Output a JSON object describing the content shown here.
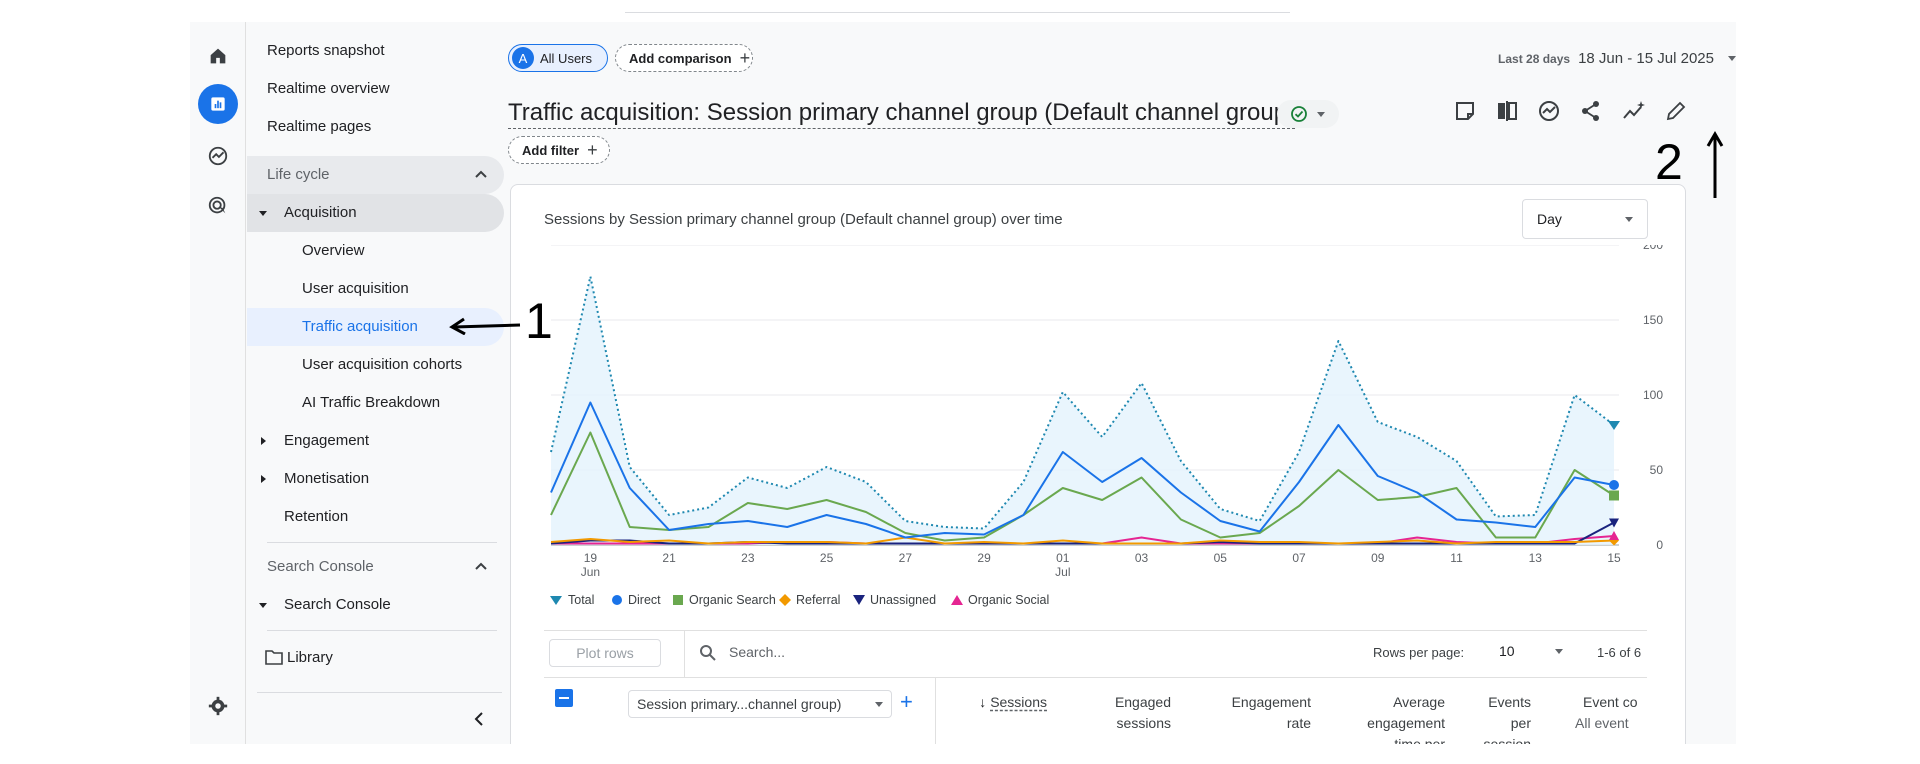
{
  "nav": {
    "top_items": [
      "Reports snapshot",
      "Realtime overview",
      "Realtime pages"
    ],
    "lifecycle_label": "Life cycle",
    "acquisition_label": "Acquisition",
    "acquisition_children": [
      "Overview",
      "User acquisition",
      "Traffic acquisition",
      "User acquisition cohorts",
      "AI Traffic Breakdown"
    ],
    "engagement_label": "Engagement",
    "monetisation_label": "Monetisation",
    "retention_label": "Retention",
    "search_console_head": "Search Console",
    "search_console_item": "Search Console",
    "library_label": "Library"
  },
  "header": {
    "segment_letter": "A",
    "segment_label": "All Users",
    "add_comparison": "Add comparison",
    "date_prefix": "Last 28 days",
    "date_range": "18 Jun - 15 Jul 2025",
    "title": "Traffic acquisition: Session primary channel group (Default channel group)",
    "add_filter": "Add filter"
  },
  "card": {
    "chart_title": "Sessions by Session primary channel group (Default channel group) over time",
    "granularity": "Day"
  },
  "table": {
    "plot_rows": "Plot rows",
    "search_placeholder": "Search...",
    "rows_per_page_label": "Rows per page:",
    "rows_per_page": "10",
    "pagination": "1-6 of 6",
    "dimension": "Session primary...channel group)",
    "col_sessions": "Sessions",
    "col_engaged_1": "Engaged",
    "col_engaged_2": "sessions",
    "col_rate_1": "Engagement",
    "col_rate_2": "rate",
    "col_avg_1": "Average",
    "col_avg_2": "engagement",
    "col_avg_3": "time per",
    "col_events_1": "Events",
    "col_events_2": "per",
    "col_events_3": "session",
    "col_count_1": "Event co",
    "col_count_2": "All event"
  },
  "annotations": {
    "one": "1",
    "two": "2"
  },
  "colors": {
    "accent": "#1a73e8",
    "total": "#1e88b0",
    "direct": "#1a73e8",
    "organic_search": "#6aa84f",
    "referral": "#f29900",
    "unassigned": "#1a237e",
    "organic_social": "#e52592"
  },
  "chart_data": {
    "type": "line",
    "title": "Sessions by Session primary channel group (Default channel group) over time",
    "x": [
      "18 Jun",
      "19 Jun",
      "20 Jun",
      "21 Jun",
      "22 Jun",
      "23 Jun",
      "24 Jun",
      "25 Jun",
      "26 Jun",
      "27 Jun",
      "28 Jun",
      "29 Jun",
      "30 Jun",
      "01 Jul",
      "02 Jul",
      "03 Jul",
      "04 Jul",
      "05 Jul",
      "06 Jul",
      "07 Jul",
      "08 Jul",
      "09 Jul",
      "10 Jul",
      "11 Jul",
      "12 Jul",
      "13 Jul",
      "14 Jul",
      "15 Jul"
    ],
    "x_tick_labels": [
      "19",
      "21",
      "23",
      "25",
      "27",
      "29",
      "01",
      "03",
      "05",
      "07",
      "09",
      "11",
      "13",
      "15"
    ],
    "x_month_labels": [
      "Jun",
      "Jul"
    ],
    "y_tick_labels": [
      "200",
      "150",
      "100",
      "50",
      "0"
    ],
    "ylim": [
      0,
      200
    ],
    "legend": [
      "Total",
      "Direct",
      "Organic Search",
      "Referral",
      "Unassigned",
      "Organic Social"
    ],
    "series": [
      {
        "name": "Total",
        "values": [
          62,
          179,
          52,
          20,
          25,
          45,
          38,
          52,
          42,
          16,
          12,
          11,
          42,
          102,
          72,
          108,
          56,
          24,
          16,
          62,
          136,
          82,
          72,
          56,
          19,
          20,
          100,
          80
        ]
      },
      {
        "name": "Direct",
        "values": [
          35,
          95,
          38,
          10,
          14,
          16,
          12,
          20,
          14,
          5,
          8,
          7,
          20,
          62,
          42,
          58,
          35,
          16,
          9,
          42,
          80,
          46,
          35,
          17,
          15,
          12,
          45,
          40
        ]
      },
      {
        "name": "Organic Search",
        "values": [
          20,
          75,
          12,
          10,
          12,
          28,
          24,
          30,
          22,
          8,
          3,
          5,
          20,
          38,
          30,
          45,
          17,
          5,
          8,
          26,
          50,
          30,
          32,
          38,
          5,
          5,
          50,
          33
        ]
      },
      {
        "name": "Referral",
        "values": [
          2,
          4,
          2,
          3,
          1,
          2,
          2,
          2,
          1,
          5,
          1,
          2,
          1,
          3,
          1,
          1,
          1,
          3,
          2,
          2,
          1,
          2,
          3,
          1,
          2,
          2,
          2,
          3
        ]
      },
      {
        "name": "Unassigned",
        "values": [
          1,
          3,
          3,
          1,
          1,
          2,
          1,
          1,
          1,
          1,
          1,
          1,
          1,
          1,
          1,
          1,
          1,
          2,
          1,
          1,
          1,
          1,
          1,
          1,
          1,
          1,
          1,
          15
        ]
      },
      {
        "name": "Organic Social",
        "values": [
          1,
          1,
          1,
          1,
          1,
          1,
          2,
          2,
          1,
          1,
          1,
          1,
          1,
          1,
          1,
          5,
          1,
          1,
          1,
          1,
          1,
          1,
          5,
          2,
          1,
          1,
          4,
          6
        ]
      }
    ]
  }
}
